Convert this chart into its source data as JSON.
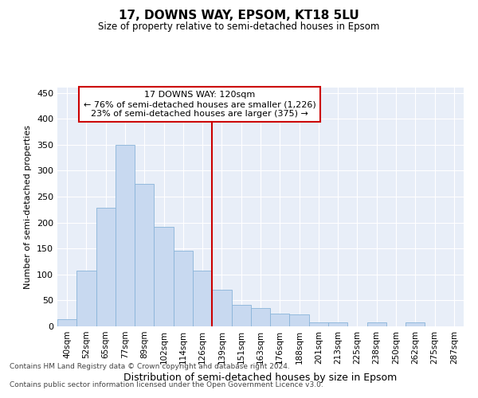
{
  "title": "17, DOWNS WAY, EPSOM, KT18 5LU",
  "subtitle": "Size of property relative to semi-detached houses in Epsom",
  "xlabel": "Distribution of semi-detached houses by size in Epsom",
  "ylabel": "Number of semi-detached properties",
  "bar_color": "#c8d9f0",
  "bar_edge_color": "#89b4d9",
  "background_color": "#e8eef8",
  "grid_color": "#ffffff",
  "annotation_box_color": "#ffffff",
  "annotation_border_color": "#cc0000",
  "vline_color": "#cc0000",
  "vline_position": 7.5,
  "annotation_text_line1": "17 DOWNS WAY: 120sqm",
  "annotation_text_line2": "← 76% of semi-detached houses are smaller (1,226)",
  "annotation_text_line3": "23% of semi-detached houses are larger (375) →",
  "footer_line1": "Contains HM Land Registry data © Crown copyright and database right 2024.",
  "footer_line2": "Contains public sector information licensed under the Open Government Licence v3.0.",
  "categories": [
    "40sqm",
    "52sqm",
    "65sqm",
    "77sqm",
    "89sqm",
    "102sqm",
    "114sqm",
    "126sqm",
    "139sqm",
    "151sqm",
    "163sqm",
    "176sqm",
    "188sqm",
    "201sqm",
    "213sqm",
    "225sqm",
    "238sqm",
    "250sqm",
    "262sqm",
    "275sqm",
    "287sqm"
  ],
  "values": [
    14,
    108,
    228,
    350,
    275,
    192,
    145,
    108,
    70,
    42,
    36,
    25,
    23,
    8,
    8,
    0,
    8,
    0,
    7,
    0,
    0
  ],
  "ylim": [
    0,
    460
  ],
  "yticks": [
    0,
    50,
    100,
    150,
    200,
    250,
    300,
    350,
    400,
    450
  ]
}
